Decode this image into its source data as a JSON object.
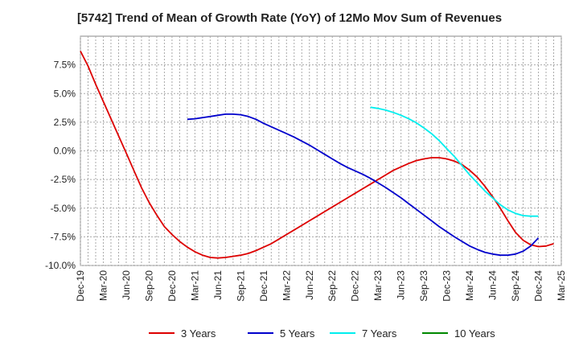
{
  "chart_data": {
    "type": "line",
    "title": "[5742]  Trend of Mean of Growth Rate (YoY) of 12Mo Mov Sum of Revenues",
    "xlabel": "",
    "ylabel": "",
    "ylim": [
      -10.0,
      10.0
    ],
    "yticks": [
      -10.0,
      -7.5,
      -5.0,
      -2.5,
      0.0,
      2.5,
      5.0,
      7.5
    ],
    "ytick_labels": [
      "-10.0%",
      "-7.5%",
      "-5.0%",
      "-2.5%",
      "0.0%",
      "2.5%",
      "5.0%",
      "7.5%"
    ],
    "x_tick_labels": [
      "Dec-19",
      "Mar-20",
      "Jun-20",
      "Sep-20",
      "Dec-20",
      "Mar-21",
      "Jun-21",
      "Sep-21",
      "Dec-21",
      "Mar-22",
      "Jun-22",
      "Sep-22",
      "Dec-22",
      "Mar-23",
      "Jun-23",
      "Sep-23",
      "Dec-23",
      "Mar-24",
      "Jun-24",
      "Sep-24",
      "Dec-24",
      "Mar-25"
    ],
    "x_start": "Dec-19",
    "x_count_months": 63,
    "grid": true,
    "legend_position": "bottom",
    "series": [
      {
        "name": "3 Years",
        "color": "#dd0000",
        "start_month_index": 0,
        "values": [
          8.7,
          7.4,
          5.8,
          4.3,
          2.8,
          1.3,
          -0.2,
          -1.7,
          -3.2,
          -4.5,
          -5.6,
          -6.6,
          -7.3,
          -7.9,
          -8.4,
          -8.8,
          -9.1,
          -9.3,
          -9.35,
          -9.3,
          -9.2,
          -9.1,
          -8.95,
          -8.7,
          -8.4,
          -8.1,
          -7.7,
          -7.3,
          -6.9,
          -6.5,
          -6.1,
          -5.7,
          -5.3,
          -4.9,
          -4.5,
          -4.1,
          -3.7,
          -3.3,
          -2.9,
          -2.5,
          -2.1,
          -1.7,
          -1.4,
          -1.1,
          -0.85,
          -0.7,
          -0.6,
          -0.6,
          -0.7,
          -0.9,
          -1.2,
          -1.7,
          -2.3,
          -3.1,
          -4.0,
          -5.0,
          -6.1,
          -7.1,
          -7.8,
          -8.2,
          -8.35,
          -8.3,
          -8.1
        ]
      },
      {
        "name": "5 Years",
        "color": "#0000cc",
        "start_month_index": 14,
        "values": [
          2.75,
          2.8,
          2.9,
          3.0,
          3.1,
          3.2,
          3.2,
          3.15,
          3.0,
          2.75,
          2.4,
          2.1,
          1.8,
          1.5,
          1.2,
          0.85,
          0.5,
          0.1,
          -0.3,
          -0.7,
          -1.1,
          -1.45,
          -1.75,
          -2.05,
          -2.4,
          -2.8,
          -3.2,
          -3.65,
          -4.1,
          -4.6,
          -5.1,
          -5.6,
          -6.1,
          -6.6,
          -7.05,
          -7.5,
          -7.9,
          -8.3,
          -8.6,
          -8.85,
          -9.0,
          -9.1,
          -9.1,
          -9.0,
          -8.75,
          -8.3,
          -7.6
        ]
      },
      {
        "name": "7 Years",
        "color": "#00eeee",
        "start_month_index": 38,
        "values": [
          3.8,
          3.7,
          3.55,
          3.35,
          3.1,
          2.8,
          2.45,
          2.0,
          1.5,
          0.9,
          0.2,
          -0.5,
          -1.3,
          -2.1,
          -2.8,
          -3.5,
          -4.1,
          -4.7,
          -5.15,
          -5.45,
          -5.65,
          -5.7,
          -5.7
        ]
      },
      {
        "name": "10 Years",
        "color": "#008800",
        "start_month_index": 0,
        "values": []
      }
    ]
  }
}
